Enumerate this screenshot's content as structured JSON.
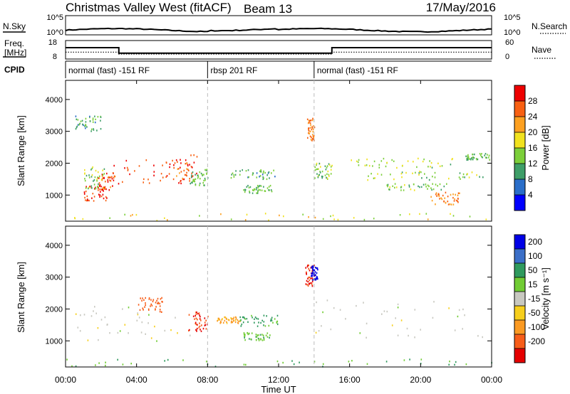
{
  "header": {
    "title": "Christmas Valley West (fitACF)",
    "beam": "Beam 13",
    "date": "17/May/2016"
  },
  "nsky_panel": {
    "left_label": "N.Sky",
    "left_ticks": [
      "10^5",
      "10^0"
    ],
    "right_label": "N.Search",
    "right_ticks": [
      "10^5",
      "10^0"
    ]
  },
  "freq_panel": {
    "left_label_1": "Freq.",
    "left_label_2": "[MHz]",
    "left_ticks": [
      "18",
      "8"
    ],
    "right_label": "Nave",
    "right_ticks": [
      "60",
      "0"
    ],
    "freq_mhz": [
      {
        "t": 0,
        "v": 14.5
      },
      {
        "t": 3,
        "v": 14.5
      },
      {
        "t": 3,
        "v": 10.6
      },
      {
        "t": 15,
        "v": 10.6
      },
      {
        "t": 15,
        "v": 14.5
      },
      {
        "t": 24,
        "v": 14.5
      }
    ],
    "nave": [
      {
        "t": 0,
        "v": 20
      },
      {
        "t": 3,
        "v": 20
      },
      {
        "t": 3,
        "v": 12
      },
      {
        "t": 15,
        "v": 12
      },
      {
        "t": 15,
        "v": 20
      },
      {
        "t": 24,
        "v": 20
      }
    ]
  },
  "cpid": {
    "label": "CPID",
    "segments": [
      {
        "start": 0,
        "end": 8,
        "label": "normal (fast) -151 RF"
      },
      {
        "start": 8,
        "end": 14,
        "label": "rbsp 201 RF"
      },
      {
        "start": 14,
        "end": 24,
        "label": "normal (fast) -151 RF"
      }
    ]
  },
  "x_axis": {
    "label": "Time UT",
    "ticks": [
      "00:00",
      "04:00",
      "08:00",
      "12:00",
      "16:00",
      "20:00",
      "00:00"
    ],
    "tick_hours": [
      0,
      4,
      8,
      12,
      16,
      20,
      24
    ],
    "range_hours": [
      0,
      24
    ]
  },
  "y_axis": {
    "label": "Slant Range [km]",
    "ticks": [
      "1000",
      "2000",
      "3000",
      "4000"
    ],
    "tick_values": [
      1000,
      2000,
      3000,
      4000
    ],
    "range_km": [
      180,
      4600
    ]
  },
  "power_colorbar": {
    "label": "Power [dB]",
    "ticks": [
      "4",
      "8",
      "12",
      "16",
      "20",
      "24",
      "28"
    ],
    "colors": [
      "#0000ff",
      "#2a6ec9",
      "#3e9e68",
      "#7ccf3a",
      "#f1e21e",
      "#fda020",
      "#f86012",
      "#ee0000"
    ]
  },
  "velocity_colorbar": {
    "label": "Velocity [m s⁻¹]",
    "ticks": [
      "200",
      "100",
      "50",
      "15",
      "-15",
      "-50",
      "-100",
      "-200"
    ],
    "colors": [
      "#0000e6",
      "#3b6fc8",
      "#2f9a5e",
      "#71cc34",
      "#c8c8c0",
      "#f7cf1c",
      "#fb9a22",
      "#f75d18",
      "#e50000"
    ]
  },
  "day_boundary_hour": 8,
  "mode_change_hour": 14,
  "chart_data": {
    "type": "heatmap",
    "title": "Christmas Valley West (fitACF) Beam 13",
    "xlabel": "Time UT",
    "ylabel": "Slant Range [km]",
    "xlim_hours": [
      0,
      24
    ],
    "ylim_km": [
      180,
      4600
    ],
    "power_regions": [
      {
        "t0": 2.6,
        "t1": 6.8,
        "r0": 1350,
        "r1": 2100,
        "db": 26
      },
      {
        "t0": 1.8,
        "t1": 2.8,
        "r0": 1150,
        "r1": 1700,
        "db": 24
      },
      {
        "t0": 1.0,
        "t1": 2.3,
        "r0": 800,
        "r1": 1300,
        "db": 26
      },
      {
        "t0": 6.0,
        "t1": 7.4,
        "r0": 1400,
        "r1": 2350,
        "db": 24
      },
      {
        "t0": 7.0,
        "t1": 8.0,
        "r0": 1300,
        "r1": 1800,
        "db": 10
      },
      {
        "t0": 0.5,
        "t1": 2.0,
        "r0": 3000,
        "r1": 3500,
        "db": 9
      },
      {
        "t0": 1.0,
        "t1": 2.2,
        "r0": 1200,
        "r1": 1900,
        "db": 12
      },
      {
        "t0": 9.2,
        "t1": 11.8,
        "r0": 1500,
        "r1": 1800,
        "db": 9
      },
      {
        "t0": 10.0,
        "t1": 11.6,
        "r0": 1050,
        "r1": 1300,
        "db": 10
      },
      {
        "t0": 13.6,
        "t1": 14.0,
        "r0": 2700,
        "r1": 3400,
        "db": 22
      },
      {
        "t0": 14.0,
        "t1": 15.0,
        "r0": 1500,
        "r1": 2000,
        "db": 12
      },
      {
        "t0": 16.0,
        "t1": 22.0,
        "r0": 1850,
        "r1": 2150,
        "db": 13
      },
      {
        "t0": 16.0,
        "t1": 23.8,
        "r0": 1450,
        "r1": 1750,
        "db": 12
      },
      {
        "t0": 18.0,
        "t1": 21.5,
        "r0": 1150,
        "r1": 1350,
        "db": 11
      },
      {
        "t0": 20.5,
        "t1": 22.2,
        "r0": 700,
        "r1": 1100,
        "db": 22
      },
      {
        "t0": 22.5,
        "t1": 23.9,
        "r0": 2100,
        "r1": 2300,
        "db": 10
      },
      {
        "t0": 0.0,
        "t1": 24.0,
        "r0": 190,
        "r1": 420,
        "db": 16
      }
    ],
    "velocity_regions": [
      {
        "t0": 0.5,
        "t1": 7.0,
        "r0": 900,
        "r1": 2100,
        "ms": 0
      },
      {
        "t0": 4.0,
        "t1": 5.5,
        "r0": 1900,
        "r1": 2350,
        "ms": -150
      },
      {
        "t0": 6.9,
        "t1": 8.0,
        "r0": 1300,
        "r1": 1900,
        "ms": -200
      },
      {
        "t0": 8.5,
        "t1": 9.8,
        "r0": 1550,
        "r1": 1750,
        "ms": -60
      },
      {
        "t0": 9.8,
        "t1": 12.0,
        "r0": 1450,
        "r1": 1800,
        "ms": 60
      },
      {
        "t0": 10.0,
        "t1": 11.5,
        "r0": 1000,
        "r1": 1250,
        "ms": 40
      },
      {
        "t0": 13.5,
        "t1": 14.0,
        "r0": 2700,
        "r1": 3400,
        "ms": -200
      },
      {
        "t0": 13.8,
        "t1": 14.2,
        "r0": 2900,
        "r1": 3350,
        "ms": 220
      },
      {
        "t0": 14.0,
        "t1": 23.9,
        "r0": 1100,
        "r1": 2300,
        "ms": 0
      },
      {
        "t0": 0.0,
        "t1": 24.0,
        "r0": 190,
        "r1": 420,
        "ms": 40
      }
    ]
  }
}
